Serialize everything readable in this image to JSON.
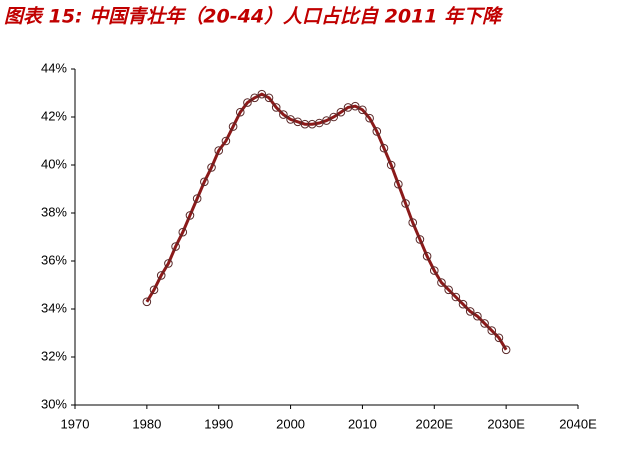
{
  "chart_data": {
    "type": "line",
    "title": "图表 15: 中国青壮年（20-44）人口占比自 2011 年下降",
    "x": [
      1980,
      1981,
      1982,
      1983,
      1984,
      1985,
      1986,
      1987,
      1988,
      1989,
      1990,
      1991,
      1992,
      1993,
      1994,
      1995,
      1996,
      1997,
      1998,
      1999,
      2000,
      2001,
      2002,
      2003,
      2004,
      2005,
      2006,
      2007,
      2008,
      2009,
      2010,
      2011,
      2012,
      2013,
      2014,
      2015,
      2016,
      2017,
      2018,
      2019,
      2020,
      2021,
      2022,
      2023,
      2024,
      2025,
      2026,
      2027,
      2028,
      2029,
      2030
    ],
    "values": [
      34.3,
      34.8,
      35.4,
      35.9,
      36.6,
      37.2,
      37.9,
      38.6,
      39.3,
      39.9,
      40.6,
      41.0,
      41.6,
      42.2,
      42.6,
      42.8,
      42.95,
      42.8,
      42.4,
      42.1,
      41.9,
      41.8,
      41.7,
      41.7,
      41.75,
      41.85,
      42.0,
      42.2,
      42.4,
      42.45,
      42.3,
      41.95,
      41.4,
      40.7,
      40.0,
      39.2,
      38.4,
      37.6,
      36.9,
      36.2,
      35.6,
      35.1,
      34.8,
      34.5,
      34.2,
      33.9,
      33.7,
      33.4,
      33.1,
      32.8,
      32.3
    ],
    "color": "#8b1a1a",
    "xlim": [
      1970,
      2040
    ],
    "xticks": [
      1970,
      1980,
      1990,
      2000,
      2010,
      {
        "value": 2020,
        "label": "2020E"
      },
      {
        "value": 2030,
        "label": "2030E"
      },
      {
        "value": 2040,
        "label": "2040E"
      }
    ],
    "ylim": [
      30,
      44
    ],
    "yticks": [
      {
        "value": 30,
        "label": "30%"
      },
      {
        "value": 32,
        "label": "32%"
      },
      {
        "value": 34,
        "label": "34%"
      },
      {
        "value": 36,
        "label": "36%"
      },
      {
        "value": 38,
        "label": "38%"
      },
      {
        "value": 40,
        "label": "40%"
      },
      {
        "value": 42,
        "label": "42%"
      },
      {
        "value": 44,
        "label": "44%"
      }
    ],
    "grid": false
  }
}
